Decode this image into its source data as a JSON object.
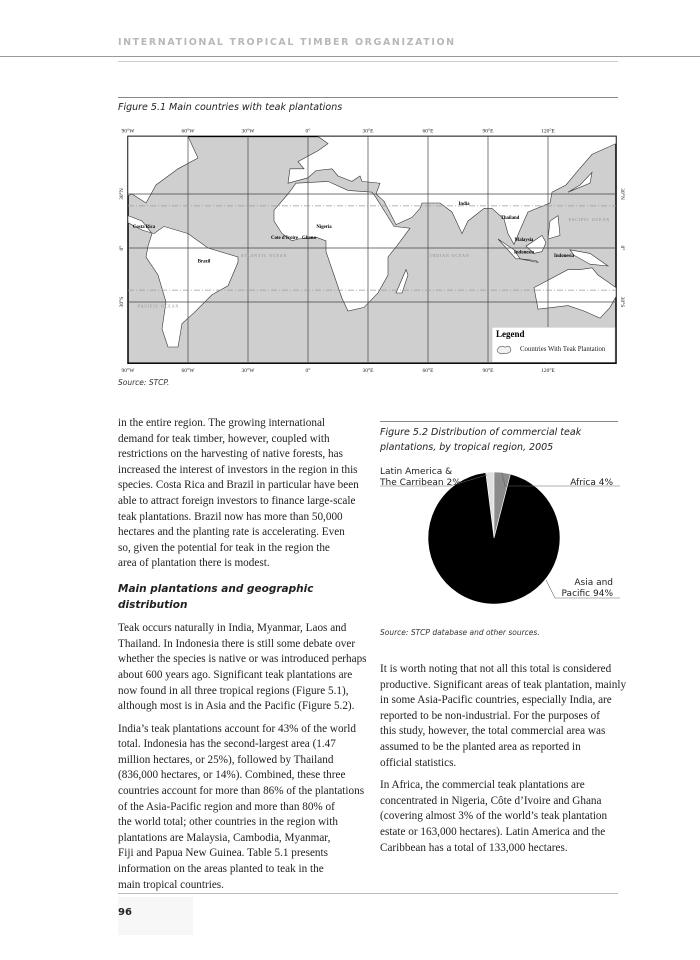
{
  "header": {
    "organization": "INTERNATIONAL TROPICAL TIMBER ORGANIZATION"
  },
  "figure1": {
    "caption": "Figure 5.1 Main countries with teak plantations",
    "source": "Source: STCP.",
    "lon_labels": [
      "90°W",
      "60°W",
      "30°W",
      "0°",
      "30°E",
      "60°E",
      "90°E",
      "120°E"
    ],
    "lat_labels": [
      "30°N",
      "0°",
      "30°S"
    ],
    "countries": [
      "Costa Rica",
      "Brazil",
      "Cote d'Ivoire",
      "Ghana",
      "Nigeria",
      "India",
      "Thailand",
      "Malaysia",
      "Indonesia",
      "Indonesia"
    ],
    "ocean_labels": [
      "ATLANTIC OCEAN",
      "INDIAN OCEAN",
      "PACIFIC OCEAN",
      "PACIFIC OCEAN"
    ],
    "legend": {
      "title": "Legend",
      "item": "Countries With Teak Plantation"
    },
    "colors": {
      "ocean": "#cfcfcf",
      "land": "#ffffff",
      "teak": "#f2f2f2"
    }
  },
  "figure2": {
    "caption_line1": "Figure 5.2 Distribution of commercial teak",
    "caption_line2": "plantations, by tropical region, 2005",
    "source": "Source: STCP database and other sources.",
    "chart_data": {
      "type": "pie",
      "title": "Figure 5.2 Distribution of commercial teak plantations, by tropical region, 2005",
      "slices": [
        {
          "label_line1": "Latin America &",
          "label_line2": "The Carribean 2%",
          "value": 2,
          "color": "#e0e0e0"
        },
        {
          "label_line1": "Africa 4%",
          "label_line2": "",
          "value": 4,
          "color": "#8c8c8c"
        },
        {
          "label_line1": "Asia and",
          "label_line2": "Pacific 94%",
          "value": 94,
          "color": "#000000"
        }
      ]
    }
  },
  "left_column": {
    "para1": [
      "in the entire region. The growing international",
      "demand for teak timber, however, coupled with",
      "restrictions on the harvesting of native forests, has",
      "increased the interest of investors in the region in this",
      "species. Costa Rica and Brazil in particular have been",
      "able to attract foreign investors to finance large-scale",
      "teak plantations. Brazil now has more than 50,000",
      "hectares and the planting rate is accelerating. Even",
      "so, given the potential for teak in the region the",
      "area of plantation there is modest."
    ],
    "heading": "Main plantations and geographic distribution",
    "para2": [
      "Teak occurs naturally in India, Myanmar, Laos and",
      "Thailand. In Indonesia there is still some debate over",
      "whether the species is native or was introduced perhaps",
      "about 600 years ago. Significant teak plantations are",
      "now found in all three tropical regions (Figure 5.1),",
      "although most is in Asia and the Pacific (Figure 5.2)."
    ],
    "para3": [
      "India’s teak plantations account for 43% of the world",
      "total. Indonesia has the second-largest area (1.47",
      "million hectares, or 25%), followed by Thailand",
      "(836,000 hectares, or 14%). Combined, these three",
      "countries account for more than 86% of the plantations",
      "of the Asia-Pacific region and more than 80% of",
      "the world total; other countries in the region with",
      "plantations are Malaysia, Cambodia, Myanmar,",
      "Fiji and Papua New Guinea. Table 5.1 presents",
      "information on the areas planted to teak in the",
      "main tropical countries."
    ]
  },
  "right_column": {
    "para1": [
      "It is worth noting that not all this total is considered",
      "productive. Significant areas of teak plantation, mainly",
      "in some Asia-Pacific countries, especially India, are",
      "reported to be non-industrial. For the purposes of",
      "this study, however, the total commercial area was",
      "assumed to be the planted area as reported in",
      "official statistics."
    ],
    "para2": [
      "In Africa, the commercial teak plantations are",
      "concentrated in Nigeria, Côte d’Ivoire and Ghana",
      "(covering almost 3% of the world’s teak plantation",
      "estate or 163,000 hectares). Latin America and the",
      "Caribbean has a total of 133,000 hectares."
    ]
  },
  "footer": {
    "page_number": "96"
  }
}
